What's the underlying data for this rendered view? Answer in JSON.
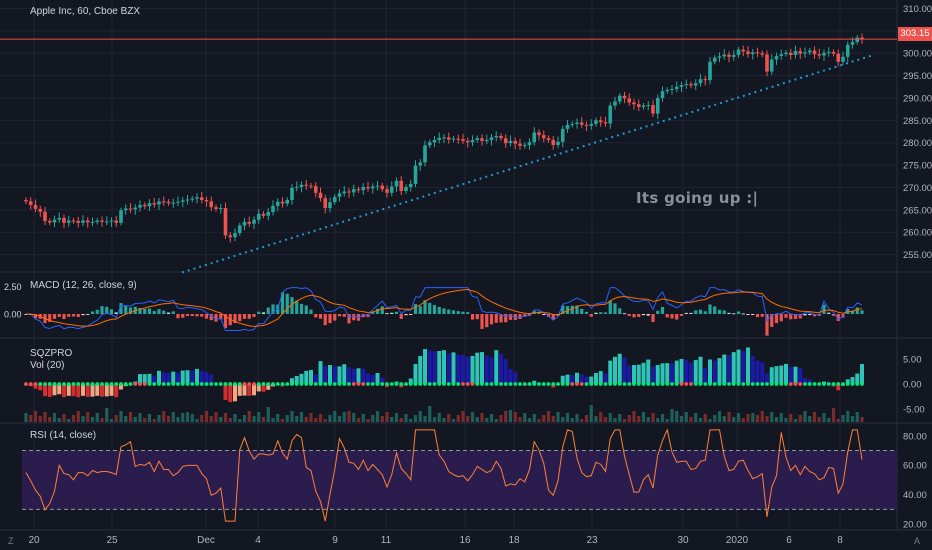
{
  "header": {
    "symbol_title": "Apple Inc, 60, Cboe BZX"
  },
  "price_badge": {
    "value": "303.15"
  },
  "annotation": {
    "text": "Its going up :|"
  },
  "colors": {
    "background": "#131722",
    "grid": "#1f2433",
    "pane_border": "#2a2e39",
    "up": "#26a69a",
    "down": "#ef5350",
    "trendline": "#1e9bd7",
    "price_line": "#ef5350",
    "macd_line": "#2962ff",
    "signal_line": "#ff6d00",
    "sqz_up_strong": "#2ec4b6",
    "sqz_up_weak": "#1a1aa6",
    "sqz_down_strong": "#d32f2f",
    "sqz_down_weak": "#f4a582",
    "rsi_line": "#ff7f39",
    "rsi_band": "#2a1d4d"
  },
  "panes": {
    "price": {
      "axis_labels": [
        "310.00",
        "305.00",
        "300.00",
        "295.00",
        "290.00",
        "285.00",
        "280.00",
        "275.00",
        "270.00",
        "265.00",
        "260.00",
        "255.00"
      ],
      "axis_values": [
        310,
        305,
        300,
        295,
        290,
        285,
        280,
        275,
        270,
        265,
        260,
        255
      ],
      "ylim": [
        252,
        311
      ],
      "current": 303.15
    },
    "macd": {
      "title": "MACD (12, 26, close, 9)",
      "axis_labels": [
        "2.50",
        "0.00"
      ],
      "axis_values": [
        2.5,
        0
      ]
    },
    "sqz": {
      "title": "SQZPRO",
      "vol_title": "Vol (20)",
      "axis_labels": [
        "5.00",
        "0.00",
        "-5.00"
      ],
      "axis_values": [
        5,
        0,
        -5
      ]
    },
    "rsi": {
      "title": "RSI (14, close)",
      "axis_labels": [
        "80.00",
        "60.00",
        "40.00",
        "20.00"
      ],
      "axis_values": [
        80,
        60,
        40,
        20
      ],
      "upper_band": 70,
      "lower_band": 30
    }
  },
  "x_axis": {
    "labels": [
      "20",
      "25",
      "Dec",
      "4",
      "9",
      "11",
      "16",
      "18",
      "23",
      "30",
      "2020",
      "6",
      "8"
    ]
  },
  "corner_icons": {
    "left": "Z",
    "right": "A"
  },
  "chart_data": {
    "type": "candlestick",
    "title": "Apple Inc, 60, Cboe BZX",
    "closes": [
      266.9,
      266.1,
      265.2,
      264.6,
      262.5,
      262.2,
      262.8,
      263.2,
      262.1,
      262.6,
      262.5,
      262.1,
      262.6,
      262.2,
      262.3,
      262.6,
      262.3,
      262.4,
      262.6,
      262.1,
      264.9,
      265.3,
      265.1,
      265.5,
      266.1,
      265.8,
      266.5,
      266.2,
      266.9,
      266.8,
      266.5,
      266.6,
      266.8,
      267.1,
      267.3,
      267.5,
      267.8,
      267.2,
      266.9,
      265.6,
      265.2,
      265.4,
      259.3,
      258.9,
      259.8,
      261.5,
      262.3,
      261.9,
      262.8,
      264.1,
      263.7,
      264.5,
      265.9,
      266.8,
      266.4,
      267.2,
      269.9,
      270.1,
      270.6,
      270.4,
      270.3,
      268.8,
      267.6,
      265.4,
      266.7,
      267.9,
      268.7,
      269.1,
      268.9,
      269.6,
      269.4,
      270.1,
      269.8,
      270.2,
      270.4,
      269.6,
      268.8,
      270.2,
      271.5,
      269.2,
      270.1,
      270.8,
      274.9,
      275.6,
      279.4,
      280.1,
      280.6,
      281.1,
      281.2,
      280.7,
      280.9,
      280.8,
      280.4,
      280.1,
      280.6,
      281.0,
      280.4,
      280.6,
      281.2,
      281.5,
      281.0,
      279.9,
      280.4,
      279.8,
      279.3,
      279.5,
      280.1,
      282.3,
      281.7,
      281.0,
      280.6,
      279.5,
      280.2,
      283.1,
      284.0,
      284.2,
      284.5,
      284.0,
      283.8,
      284.2,
      285.0,
      284.6,
      284.3,
      288.3,
      289.2,
      290.5,
      289.9,
      289.0,
      288.6,
      288.0,
      288.3,
      288.4,
      286.5,
      290.0,
      291.5,
      291.8,
      292.0,
      292.5,
      292.9,
      293.1,
      292.8,
      293.3,
      294.2,
      294.0,
      298.1,
      299.0,
      299.3,
      299.7,
      299.2,
      299.6,
      300.8,
      300.4,
      299.8,
      300.2,
      300.0,
      299.7,
      295.9,
      298.6,
      299.4,
      299.8,
      300.1,
      299.6,
      300.5,
      299.9,
      300.2,
      300.6,
      299.8,
      299.5,
      300.1,
      300.3,
      299.9,
      298.1,
      299.2,
      301.9,
      302.5,
      303.5,
      303.15
    ],
    "trendline": {
      "from": 251,
      "to": 299.5
    },
    "annotation": "Its going up :|",
    "ylim": [
      252,
      311
    ],
    "xlabels": [
      "20",
      "25",
      "Dec",
      "4",
      "9",
      "11",
      "16",
      "18",
      "23",
      "30",
      "2020",
      "6",
      "8"
    ]
  }
}
